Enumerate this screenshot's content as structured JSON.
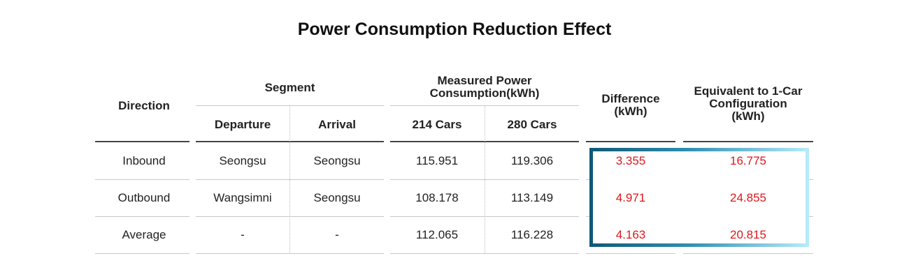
{
  "title": "Power Consumption Reduction Effect",
  "headers": {
    "direction": "Direction",
    "segment": "Segment",
    "departure": "Departure",
    "arrival": "Arrival",
    "measured_line1": "Measured Power",
    "measured_line2": "Consumption(kWh)",
    "cars214": "214 Cars",
    "cars280": "280 Cars",
    "difference_line1": "Difference",
    "difference_line2": "(kWh)",
    "equivalent_line1": "Equivalent to 1-Car",
    "equivalent_line2": "Configuration",
    "equivalent_line3": "(kWh)"
  },
  "rows": [
    {
      "direction": "Inbound",
      "departure": "Seongsu",
      "arrival": "Seongsu",
      "cars214": "115.951",
      "cars280": "119.306",
      "difference": "3.355",
      "equivalent": "16.775"
    },
    {
      "direction": "Outbound",
      "departure": "Wangsimni",
      "arrival": "Seongsu",
      "cars214": "108.178",
      "cars280": "113.149",
      "difference": "4.971",
      "equivalent": "24.855"
    },
    {
      "direction": "Average",
      "departure": "-",
      "arrival": "-",
      "cars214": "112.065",
      "cars280": "116.228",
      "difference": "4.163",
      "equivalent": "20.815"
    }
  ],
  "colors": {
    "highlight_value": "#e0161d",
    "highlight_border_start": "#0f5876",
    "highlight_border_end": "#b7ecfb"
  }
}
